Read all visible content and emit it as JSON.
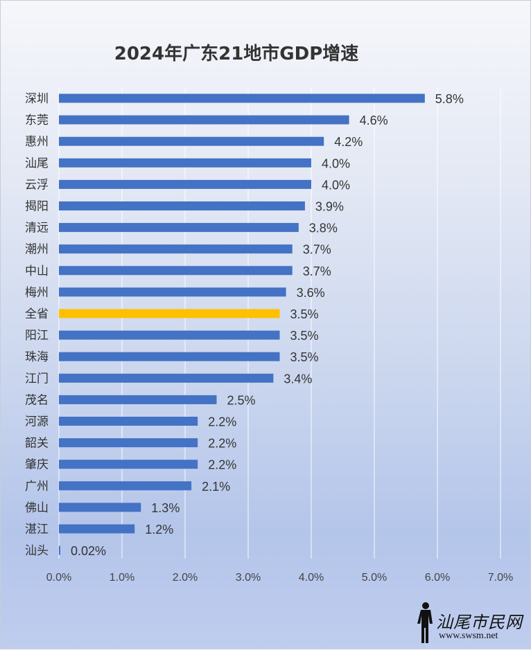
{
  "chart_data": {
    "type": "bar",
    "orientation": "horizontal",
    "title": "2024年广东21地市GDP增速",
    "categories": [
      "深圳",
      "东莞",
      "惠州",
      "汕尾",
      "云浮",
      "揭阳",
      "清远",
      "潮州",
      "中山",
      "梅州",
      "全省",
      "阳江",
      "珠海",
      "江门",
      "茂名",
      "河源",
      "韶关",
      "肇庆",
      "广州",
      "佛山",
      "湛江",
      "汕头"
    ],
    "values": [
      5.8,
      4.6,
      4.2,
      4.0,
      4.0,
      3.9,
      3.8,
      3.7,
      3.7,
      3.6,
      3.5,
      3.5,
      3.5,
      3.4,
      2.5,
      2.2,
      2.2,
      2.2,
      2.1,
      1.3,
      1.2,
      0.02
    ],
    "value_labels": [
      "5.8%",
      "4.6%",
      "4.2%",
      "4.0%",
      "4.0%",
      "3.9%",
      "3.8%",
      "3.7%",
      "3.7%",
      "3.6%",
      "3.5%",
      "3.5%",
      "3.5%",
      "3.4%",
      "2.5%",
      "2.2%",
      "2.2%",
      "2.2%",
      "2.1%",
      "1.3%",
      "1.2%",
      "0.02%"
    ],
    "xlim": [
      0,
      7
    ],
    "xticks": [
      0,
      1,
      2,
      3,
      4,
      5,
      6,
      7
    ],
    "xtick_labels": [
      "0.0%",
      "1.0%",
      "2.0%",
      "3.0%",
      "4.0%",
      "5.0%",
      "6.0%",
      "7.0%"
    ],
    "xlabel": "",
    "ylabel": "",
    "grid": "vertical",
    "bar_color": "#4472c4",
    "highlight_category": "全省",
    "highlight_color": "#ffc000",
    "legend": "none"
  },
  "watermark": {
    "text": "汕尾市民网",
    "url": "www.swsm.net",
    "icon": "standing-figure-icon"
  }
}
